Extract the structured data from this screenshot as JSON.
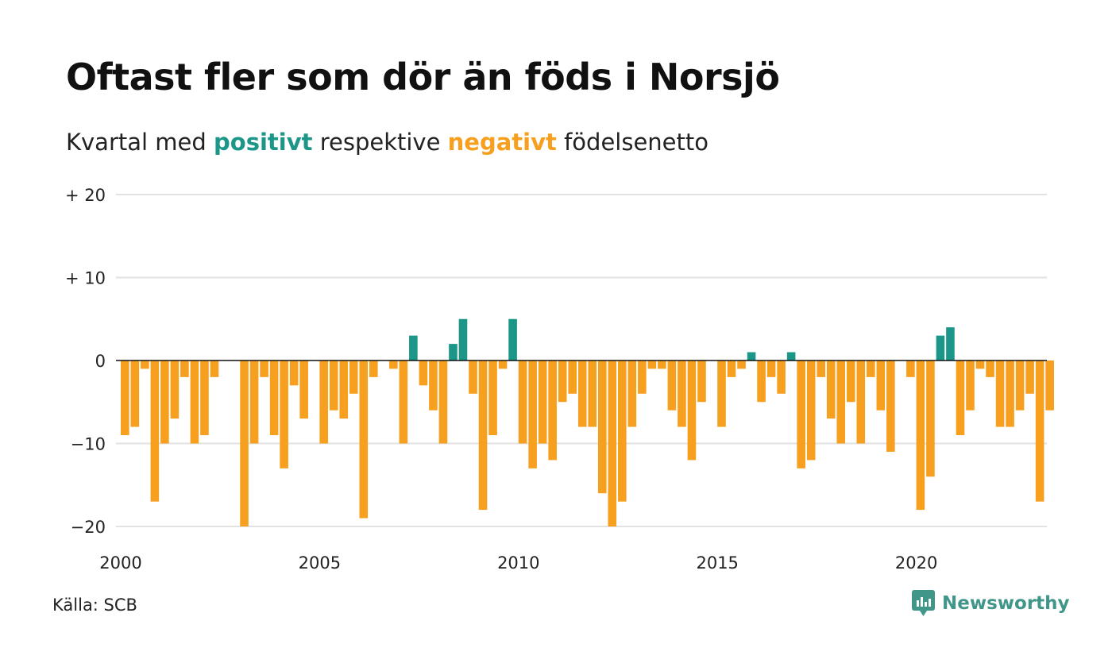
{
  "title": "Oftast fler som dör än föds i Norsjö",
  "subtitle": {
    "prefix": "Kvartal med ",
    "positive_word": "positivt",
    "middle": " respektive ",
    "negative_word": "negativt",
    "suffix": " födelsenetto"
  },
  "source": "Källa: SCB",
  "brand": "Newsworthy",
  "colors": {
    "positive": "#1b9688",
    "negative": "#f7a01f",
    "grid": "#e2e2e2",
    "zero": "#111111",
    "brand": "#3f9689"
  },
  "chart_data": {
    "type": "bar",
    "x_start": "2000 Q1",
    "x_ticks": [
      "2000",
      "2005",
      "2010",
      "2015",
      "2020"
    ],
    "y_ticks": [
      "+ 20",
      "+ 10",
      "0",
      "−10",
      "−20"
    ],
    "ylim": [
      -20,
      20
    ],
    "grid": true,
    "series": [
      {
        "values": [
          -9,
          -8,
          -1,
          -17,
          -10,
          -7,
          -2,
          -10,
          -9,
          -2,
          null,
          null,
          -20,
          -10,
          -2,
          -9,
          -13,
          -3,
          -7,
          null,
          -10,
          -6,
          -7,
          -4,
          -19,
          -2,
          null,
          -1,
          -10,
          3,
          -3,
          -6,
          -10,
          2,
          5,
          -4,
          -18,
          -9,
          -1,
          5,
          -10,
          -13,
          -10,
          -12,
          -5,
          -4,
          -8,
          -8,
          -16,
          -20,
          -17,
          -8,
          -4,
          -1,
          -1,
          -6,
          -8,
          -12,
          -5,
          null,
          -8,
          -2,
          -1,
          1,
          -5,
          -2,
          -4,
          1,
          -13,
          -12,
          -2,
          -7,
          -10,
          -5,
          -10,
          -2,
          -6,
          -11,
          null,
          -2,
          -18,
          -14,
          3,
          4,
          -9,
          -6,
          -1,
          -2,
          -8,
          -8,
          -6,
          -4,
          -17,
          -6
        ]
      }
    ]
  }
}
